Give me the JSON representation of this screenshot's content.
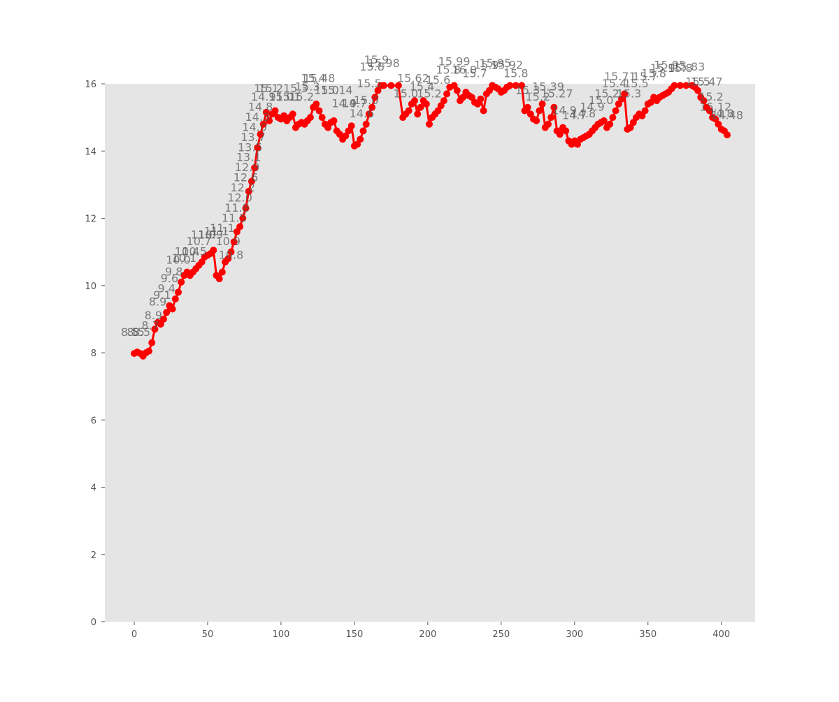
{
  "chart_data": {
    "type": "line",
    "title": "",
    "xlabel": "",
    "ylabel": "",
    "xlim": [
      -20,
      423
    ],
    "ylim": [
      0,
      16
    ],
    "x_ticks": [
      0,
      50,
      100,
      150,
      200,
      250,
      300,
      350,
      400
    ],
    "y_ticks": [
      0,
      2,
      4,
      6,
      8,
      10,
      12,
      14,
      16
    ],
    "grid": false,
    "legend": "none",
    "colors": {
      "background": "#e5e5e5",
      "series": "#ff0000",
      "labels": "#555555"
    },
    "series": [
      {
        "points": [
          [
            0,
            7.98
          ],
          [
            2,
            8.02
          ],
          [
            4,
            7.98
          ],
          [
            6,
            7.9
          ],
          [
            8,
            8.0
          ],
          [
            10,
            8.05
          ],
          [
            12,
            8.3
          ],
          [
            14,
            8.7
          ],
          [
            16,
            8.9
          ],
          [
            18,
            8.85
          ],
          [
            20,
            9.0
          ],
          [
            22,
            9.2
          ],
          [
            24,
            9.4
          ],
          [
            26,
            9.3
          ],
          [
            28,
            9.6
          ],
          [
            30,
            9.8
          ],
          [
            32,
            10.1
          ],
          [
            34,
            10.3
          ],
          [
            36,
            10.4
          ],
          [
            38,
            10.3
          ],
          [
            40,
            10.4
          ],
          [
            42,
            10.5
          ],
          [
            44,
            10.6
          ],
          [
            46,
            10.7
          ],
          [
            48,
            10.85
          ],
          [
            50,
            10.9
          ],
          [
            52,
            10.95
          ],
          [
            54,
            11.05
          ],
          [
            56,
            10.3
          ],
          [
            58,
            10.2
          ],
          [
            60,
            10.4
          ],
          [
            62,
            10.7
          ],
          [
            64,
            10.8
          ],
          [
            66,
            11.0
          ],
          [
            68,
            11.3
          ],
          [
            70,
            11.6
          ],
          [
            72,
            11.75
          ],
          [
            74,
            12.0
          ],
          [
            76,
            12.3
          ],
          [
            78,
            12.8
          ],
          [
            80,
            13.1
          ],
          [
            82,
            13.5
          ],
          [
            84,
            14.1
          ],
          [
            86,
            14.5
          ],
          [
            88,
            14.8
          ],
          [
            90,
            15.15
          ],
          [
            92,
            14.9
          ],
          [
            94,
            15.1
          ],
          [
            96,
            15.2
          ],
          [
            98,
            15.0
          ],
          [
            100,
            14.95
          ],
          [
            102,
            15.05
          ],
          [
            104,
            14.9
          ],
          [
            106,
            15.0
          ],
          [
            108,
            15.1
          ],
          [
            110,
            14.7
          ],
          [
            112,
            14.8
          ],
          [
            114,
            14.85
          ],
          [
            116,
            14.8
          ],
          [
            118,
            14.9
          ],
          [
            120,
            15.0
          ],
          [
            122,
            15.3
          ],
          [
            124,
            15.4
          ],
          [
            126,
            15.2
          ],
          [
            128,
            15.0
          ],
          [
            130,
            14.8
          ],
          [
            132,
            14.7
          ],
          [
            134,
            14.85
          ],
          [
            136,
            14.9
          ],
          [
            138,
            14.6
          ],
          [
            140,
            14.5
          ],
          [
            142,
            14.35
          ],
          [
            144,
            14.45
          ],
          [
            146,
            14.6
          ],
          [
            148,
            14.75
          ],
          [
            150,
            14.15
          ],
          [
            152,
            14.2
          ],
          [
            154,
            14.35
          ],
          [
            156,
            14.6
          ],
          [
            158,
            14.8
          ],
          [
            160,
            15.1
          ],
          [
            162,
            15.3
          ],
          [
            164,
            15.6
          ],
          [
            166,
            15.8
          ],
          [
            168,
            15.95
          ],
          [
            170,
            15.95
          ],
          [
            175,
            15.95
          ],
          [
            180,
            15.95
          ],
          [
            183,
            15.0
          ],
          [
            185,
            15.1
          ],
          [
            187,
            15.2
          ],
          [
            189,
            15.4
          ],
          [
            191,
            15.5
          ],
          [
            193,
            15.1
          ],
          [
            195,
            15.3
          ],
          [
            197,
            15.5
          ],
          [
            199,
            15.4
          ],
          [
            201,
            14.8
          ],
          [
            203,
            15.0
          ],
          [
            205,
            15.1
          ],
          [
            207,
            15.2
          ],
          [
            209,
            15.35
          ],
          [
            211,
            15.5
          ],
          [
            213,
            15.7
          ],
          [
            215,
            15.9
          ],
          [
            218,
            15.95
          ],
          [
            220,
            15.8
          ],
          [
            222,
            15.5
          ],
          [
            224,
            15.6
          ],
          [
            226,
            15.75
          ],
          [
            228,
            15.65
          ],
          [
            230,
            15.6
          ],
          [
            232,
            15.45
          ],
          [
            234,
            15.4
          ],
          [
            236,
            15.55
          ],
          [
            238,
            15.2
          ],
          [
            240,
            15.7
          ],
          [
            242,
            15.8
          ],
          [
            244,
            15.95
          ],
          [
            246,
            15.9
          ],
          [
            248,
            15.85
          ],
          [
            250,
            15.75
          ],
          [
            252,
            15.8
          ],
          [
            254,
            15.9
          ],
          [
            256,
            15.95
          ],
          [
            260,
            15.95
          ],
          [
            264,
            15.95
          ],
          [
            266,
            15.2
          ],
          [
            268,
            15.3
          ],
          [
            270,
            15.1
          ],
          [
            272,
            14.95
          ],
          [
            274,
            14.9
          ],
          [
            276,
            15.2
          ],
          [
            278,
            15.4
          ],
          [
            280,
            14.7
          ],
          [
            282,
            14.8
          ],
          [
            284,
            15.0
          ],
          [
            286,
            15.3
          ],
          [
            288,
            14.6
          ],
          [
            290,
            14.5
          ],
          [
            292,
            14.7
          ],
          [
            294,
            14.6
          ],
          [
            296,
            14.3
          ],
          [
            298,
            14.2
          ],
          [
            300,
            14.3
          ],
          [
            302,
            14.2
          ],
          [
            304,
            14.35
          ],
          [
            306,
            14.4
          ],
          [
            308,
            14.45
          ],
          [
            310,
            14.5
          ],
          [
            312,
            14.6
          ],
          [
            314,
            14.7
          ],
          [
            316,
            14.8
          ],
          [
            318,
            14.85
          ],
          [
            320,
            14.9
          ],
          [
            322,
            14.7
          ],
          [
            324,
            14.8
          ],
          [
            326,
            15.0
          ],
          [
            328,
            15.2
          ],
          [
            330,
            15.4
          ],
          [
            332,
            15.55
          ],
          [
            334,
            15.7
          ],
          [
            336,
            14.65
          ],
          [
            338,
            14.7
          ],
          [
            340,
            14.85
          ],
          [
            342,
            15.0
          ],
          [
            344,
            15.1
          ],
          [
            346,
            15.05
          ],
          [
            348,
            15.2
          ],
          [
            350,
            15.4
          ],
          [
            352,
            15.45
          ],
          [
            354,
            15.6
          ],
          [
            356,
            15.5
          ],
          [
            358,
            15.6
          ],
          [
            360,
            15.65
          ],
          [
            362,
            15.7
          ],
          [
            364,
            15.75
          ],
          [
            366,
            15.85
          ],
          [
            368,
            15.95
          ],
          [
            372,
            15.95
          ],
          [
            376,
            15.95
          ],
          [
            380,
            15.95
          ],
          [
            382,
            15.9
          ],
          [
            384,
            15.8
          ],
          [
            386,
            15.6
          ],
          [
            388,
            15.5
          ],
          [
            390,
            15.3
          ],
          [
            392,
            15.2
          ],
          [
            394,
            15.0
          ],
          [
            396,
            14.95
          ],
          [
            398,
            14.8
          ],
          [
            400,
            14.65
          ],
          [
            402,
            14.6
          ],
          [
            404,
            14.48
          ]
        ]
      }
    ],
    "data_labels": [
      {
        "x": -3,
        "y": 8.5,
        "text": "8.5"
      },
      {
        "x": 1,
        "y": 8.5,
        "text": "8.5"
      },
      {
        "x": 5,
        "y": 8.5,
        "text": "8.5"
      },
      {
        "x": 11,
        "y": 8.7,
        "text": "8.7"
      },
      {
        "x": 13,
        "y": 9.0,
        "text": "8.9"
      },
      {
        "x": 16,
        "y": 9.4,
        "text": "8.9"
      },
      {
        "x": 19,
        "y": 9.6,
        "text": "9.1"
      },
      {
        "x": 22,
        "y": 9.8,
        "text": "9.4"
      },
      {
        "x": 24,
        "y": 10.1,
        "text": "9.6"
      },
      {
        "x": 27,
        "y": 10.3,
        "text": "9.8"
      },
      {
        "x": 30,
        "y": 10.65,
        "text": "10.0"
      },
      {
        "x": 34,
        "y": 10.7,
        "text": "10.1"
      },
      {
        "x": 36,
        "y": 10.9,
        "text": "10.4"
      },
      {
        "x": 41,
        "y": 10.9,
        "text": "10.5"
      },
      {
        "x": 44,
        "y": 11.2,
        "text": "10.7"
      },
      {
        "x": 47,
        "y": 11.4,
        "text": "11.0"
      },
      {
        "x": 52,
        "y": 11.4,
        "text": "10.9"
      },
      {
        "x": 56,
        "y": 11.5,
        "text": "11.1"
      },
      {
        "x": 60,
        "y": 11.6,
        "text": "11.1"
      },
      {
        "x": 64,
        "y": 11.2,
        "text": "10.9"
      },
      {
        "x": 66,
        "y": 10.8,
        "text": "10.8"
      },
      {
        "x": 68,
        "y": 11.9,
        "text": "11.5"
      },
      {
        "x": 70,
        "y": 12.2,
        "text": "11.8"
      },
      {
        "x": 72,
        "y": 12.5,
        "text": "12.0"
      },
      {
        "x": 74,
        "y": 12.8,
        "text": "12.2"
      },
      {
        "x": 76,
        "y": 13.1,
        "text": "12.6"
      },
      {
        "x": 77,
        "y": 13.4,
        "text": "12.9"
      },
      {
        "x": 78,
        "y": 13.7,
        "text": "13.1"
      },
      {
        "x": 79,
        "y": 14.0,
        "text": "13.5"
      },
      {
        "x": 81,
        "y": 14.3,
        "text": "13.7"
      },
      {
        "x": 82,
        "y": 14.6,
        "text": "14.0"
      },
      {
        "x": 84,
        "y": 14.9,
        "text": "14.3"
      },
      {
        "x": 86,
        "y": 15.2,
        "text": "14.8"
      },
      {
        "x": 88,
        "y": 15.5,
        "text": "14.9"
      },
      {
        "x": 90,
        "y": 15.75,
        "text": "15.1"
      },
      {
        "x": 93,
        "y": 15.75,
        "text": "15.2"
      },
      {
        "x": 100,
        "y": 15.5,
        "text": "15.0"
      },
      {
        "x": 105,
        "y": 15.5,
        "text": "15.1"
      },
      {
        "x": 110,
        "y": 15.75,
        "text": "15.3"
      },
      {
        "x": 114,
        "y": 15.5,
        "text": "15.2"
      },
      {
        "x": 118,
        "y": 15.8,
        "text": "15.3"
      },
      {
        "x": 122,
        "y": 16.05,
        "text": "15.4"
      },
      {
        "x": 126,
        "y": 16.05,
        "text": "15.48"
      },
      {
        "x": 131,
        "y": 15.7,
        "text": "15.0"
      },
      {
        "x": 138,
        "y": 15.7,
        "text": "15.14"
      },
      {
        "x": 143,
        "y": 15.3,
        "text": "14.9"
      },
      {
        "x": 150,
        "y": 15.3,
        "text": "14.7"
      },
      {
        "x": 155,
        "y": 15.0,
        "text": "14.6"
      },
      {
        "x": 158,
        "y": 15.4,
        "text": "15.0"
      },
      {
        "x": 160,
        "y": 15.9,
        "text": "15.5"
      },
      {
        "x": 162,
        "y": 16.4,
        "text": "15.8"
      },
      {
        "x": 165,
        "y": 16.6,
        "text": "15.9"
      },
      {
        "x": 170,
        "y": 16.5,
        "text": "15.98"
      },
      {
        "x": 185,
        "y": 15.6,
        "text": "15.0"
      },
      {
        "x": 190,
        "y": 16.05,
        "text": "15.62"
      },
      {
        "x": 196,
        "y": 15.8,
        "text": "15.4"
      },
      {
        "x": 201,
        "y": 15.6,
        "text": "15.2"
      },
      {
        "x": 207,
        "y": 16.0,
        "text": "15.6"
      },
      {
        "x": 214,
        "y": 16.3,
        "text": "15.8"
      },
      {
        "x": 218,
        "y": 16.55,
        "text": "15.99"
      },
      {
        "x": 225,
        "y": 16.3,
        "text": "16.0"
      },
      {
        "x": 232,
        "y": 16.2,
        "text": "15.7"
      },
      {
        "x": 240,
        "y": 16.45,
        "text": "15.9"
      },
      {
        "x": 246,
        "y": 16.5,
        "text": "15.95"
      },
      {
        "x": 254,
        "y": 16.45,
        "text": "15.92"
      },
      {
        "x": 260,
        "y": 16.2,
        "text": "15.8"
      },
      {
        "x": 268,
        "y": 15.7,
        "text": "15.3"
      },
      {
        "x": 275,
        "y": 15.5,
        "text": "15.2"
      },
      {
        "x": 282,
        "y": 15.8,
        "text": "15.39"
      },
      {
        "x": 288,
        "y": 15.6,
        "text": "15.27"
      },
      {
        "x": 293,
        "y": 15.1,
        "text": "14.9"
      },
      {
        "x": 300,
        "y": 14.95,
        "text": "14.7"
      },
      {
        "x": 306,
        "y": 15.0,
        "text": "14.8"
      },
      {
        "x": 312,
        "y": 15.2,
        "text": "14.9"
      },
      {
        "x": 318,
        "y": 15.4,
        "text": "15.0"
      },
      {
        "x": 322,
        "y": 15.6,
        "text": "15.2"
      },
      {
        "x": 327,
        "y": 15.9,
        "text": "15.4"
      },
      {
        "x": 331,
        "y": 16.1,
        "text": "15.71"
      },
      {
        "x": 337,
        "y": 15.6,
        "text": "15.3"
      },
      {
        "x": 342,
        "y": 15.9,
        "text": "15.5"
      },
      {
        "x": 348,
        "y": 16.1,
        "text": "15.7"
      },
      {
        "x": 354,
        "y": 16.2,
        "text": "15.8"
      },
      {
        "x": 360,
        "y": 16.35,
        "text": "15.9"
      },
      {
        "x": 365,
        "y": 16.45,
        "text": "15.95"
      },
      {
        "x": 372,
        "y": 16.35,
        "text": "15.8"
      },
      {
        "x": 378,
        "y": 16.4,
        "text": "15.83"
      },
      {
        "x": 384,
        "y": 15.95,
        "text": "15.5"
      },
      {
        "x": 390,
        "y": 15.95,
        "text": "15.47"
      },
      {
        "x": 393,
        "y": 15.5,
        "text": "15.2"
      },
      {
        "x": 396,
        "y": 15.2,
        "text": "15.12"
      },
      {
        "x": 400,
        "y": 15.0,
        "text": "14.8"
      },
      {
        "x": 404,
        "y": 14.95,
        "text": "14.48"
      }
    ]
  }
}
